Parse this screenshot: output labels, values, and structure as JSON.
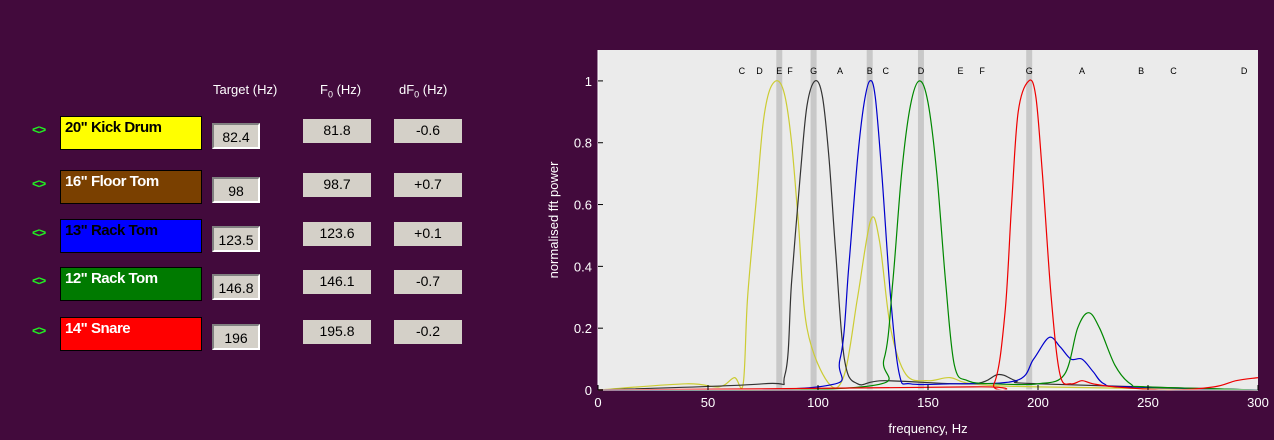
{
  "table": {
    "headers": {
      "target": "Target (Hz)",
      "f0_main": "F",
      "f0_sub": "0",
      "f0_unit": " (Hz)",
      "df_main": "dF",
      "df_sub": "0",
      "df_unit": " (Hz)"
    },
    "arrow": "<>",
    "rows": [
      {
        "name": "20\" Kick Drum",
        "color": "#FFFF00",
        "text_color": "#000000",
        "target": "82.4",
        "f0": "81.8",
        "df": "-0.6"
      },
      {
        "name": "16\" Floor Tom",
        "color": "#7A4000",
        "text_color": "#FFFFFF",
        "target": "98",
        "f0": "98.7",
        "df": "+0.7"
      },
      {
        "name": "13\" Rack Tom",
        "color": "#0000FF",
        "text_color": "#000000",
        "target": "123.5",
        "f0": "123.6",
        "df": "+0.1"
      },
      {
        "name": "12\" Rack Tom",
        "color": "#007A00",
        "text_color": "#FFFFFF",
        "target": "146.8",
        "f0": "146.1",
        "df": "-0.7"
      },
      {
        "name": "14\" Snare",
        "color": "#FF0000",
        "text_color": "#FFFFFF",
        "target": "196",
        "f0": "195.8",
        "df": "-0.2"
      }
    ]
  },
  "chart_data": {
    "type": "line",
    "xlabel": "frequency, Hz",
    "ylabel": "normalised fft power",
    "xlim": [
      0,
      300
    ],
    "ylim": [
      0,
      1.1
    ],
    "xticks": [
      "0",
      "50",
      "100",
      "150",
      "200",
      "250",
      "300"
    ],
    "yticks": [
      "0",
      "0.2",
      "0.4",
      "0.6",
      "0.8",
      "1"
    ],
    "grid": false,
    "background": "#EBEBEB",
    "marker_lines": [
      82.4,
      98,
      123.5,
      146.8,
      196
    ],
    "note_labels": [
      {
        "x": 65.4,
        "text": "C"
      },
      {
        "x": 73.4,
        "text": "D"
      },
      {
        "x": 82.4,
        "text": "E"
      },
      {
        "x": 87.3,
        "text": "F"
      },
      {
        "x": 98.0,
        "text": "G"
      },
      {
        "x": 110.0,
        "text": "A"
      },
      {
        "x": 123.5,
        "text": "B"
      },
      {
        "x": 130.8,
        "text": "C"
      },
      {
        "x": 146.8,
        "text": "D"
      },
      {
        "x": 164.8,
        "text": "E"
      },
      {
        "x": 174.6,
        "text": "F"
      },
      {
        "x": 196.0,
        "text": "G"
      },
      {
        "x": 220.0,
        "text": "A"
      },
      {
        "x": 246.9,
        "text": "B"
      },
      {
        "x": 261.6,
        "text": "C"
      },
      {
        "x": 293.7,
        "text": "D"
      }
    ],
    "series": [
      {
        "color": "#CCCC33",
        "x": [
          0,
          40,
          55,
          62,
          66,
          68,
          72,
          75,
          78,
          81.8,
          85,
          88,
          91,
          95,
          105,
          112,
          118,
          124,
          128,
          133,
          140,
          150,
          160,
          170,
          200,
          300
        ],
        "y": [
          0,
          0.02,
          0.01,
          0.04,
          0.02,
          0.3,
          0.62,
          0.86,
          0.97,
          1.0,
          0.95,
          0.8,
          0.55,
          0.2,
          0.02,
          0.05,
          0.3,
          0.55,
          0.48,
          0.2,
          0.05,
          0.03,
          0.04,
          0.02,
          0.01,
          0
        ]
      },
      {
        "color": "#333333",
        "x": [
          0,
          75,
          85,
          88,
          92,
          95,
          98.7,
          102,
          105,
          108,
          112,
          118,
          130,
          170,
          182,
          190,
          200,
          300
        ],
        "y": [
          0,
          0.02,
          0.05,
          0.35,
          0.7,
          0.92,
          1.0,
          0.95,
          0.75,
          0.45,
          0.1,
          0.02,
          0.03,
          0.02,
          0.05,
          0.03,
          0.02,
          0
        ]
      },
      {
        "color": "#0000CC",
        "x": [
          0,
          100,
          110,
          114,
          118,
          121,
          123.6,
          126,
          129,
          133,
          137,
          142,
          160,
          190,
          198,
          205,
          210,
          215,
          220,
          225,
          230,
          240,
          300
        ],
        "y": [
          0,
          0.01,
          0.1,
          0.4,
          0.75,
          0.93,
          1.0,
          0.95,
          0.7,
          0.3,
          0.05,
          0.02,
          0.02,
          0.03,
          0.1,
          0.17,
          0.14,
          0.1,
          0.1,
          0.06,
          0.02,
          0.01,
          0
        ]
      },
      {
        "color": "#008800",
        "x": [
          0,
          120,
          130,
          134,
          138,
          142,
          146.1,
          150,
          154,
          158,
          162,
          168,
          180,
          200,
          212,
          218,
          223,
          228,
          235,
          242,
          250,
          300
        ],
        "y": [
          0,
          0.01,
          0.1,
          0.35,
          0.7,
          0.92,
          1.0,
          0.93,
          0.7,
          0.35,
          0.08,
          0.03,
          0.02,
          0.02,
          0.05,
          0.2,
          0.25,
          0.2,
          0.08,
          0.02,
          0.01,
          0
        ]
      },
      {
        "color": "#EE0000",
        "x": [
          0,
          170,
          180,
          185,
          188,
          191,
          195.8,
          199,
          202,
          206,
          210,
          215,
          220,
          225,
          235,
          260,
          280,
          290,
          300
        ],
        "y": [
          0,
          0.01,
          0.02,
          0.25,
          0.6,
          0.9,
          1.0,
          0.95,
          0.7,
          0.3,
          0.05,
          0.02,
          0.03,
          0.02,
          0.01,
          0,
          0.01,
          0.03,
          0.04
        ]
      }
    ]
  }
}
